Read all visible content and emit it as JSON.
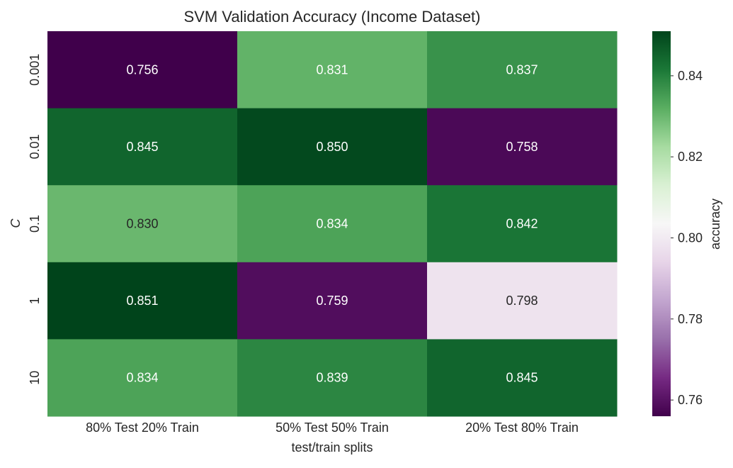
{
  "chart_data": {
    "type": "heatmap",
    "title": "SVM Validation Accuracy (Income Dataset)",
    "xlabel": "test/train splits",
    "ylabel": "C",
    "x_categories": [
      "80% Test 20% Train",
      "50% Test 50% Train",
      "20% Test 80% Train"
    ],
    "y_categories": [
      "0.001",
      "0.01",
      "0.1",
      "1",
      "10"
    ],
    "values": [
      [
        0.756,
        0.831,
        0.837
      ],
      [
        0.845,
        0.85,
        0.758
      ],
      [
        0.83,
        0.834,
        0.842
      ],
      [
        0.851,
        0.759,
        0.798
      ],
      [
        0.834,
        0.839,
        0.845
      ]
    ],
    "annotation_format": "0.000",
    "colormap": "PRGn",
    "vmin": 0.756,
    "vmax": 0.851,
    "colorbar": {
      "label": "accuracy",
      "ticks": [
        0.76,
        0.78,
        0.8,
        0.82,
        0.84
      ],
      "tick_labels": [
        "0.76",
        "0.78",
        "0.80",
        "0.82",
        "0.84"
      ]
    },
    "colors": {
      "low": "#40004b",
      "mid": "#f7f7f7",
      "high": "#00441b",
      "annotation_text": "#ffffff",
      "annotation_text_light_cell": "#262626"
    },
    "grid": false
  }
}
